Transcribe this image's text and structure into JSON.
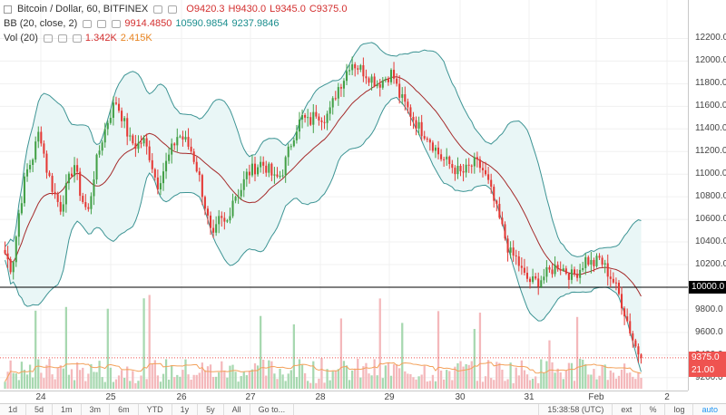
{
  "legend": {
    "title": "Bitcoin / Dollar, 60, BITFINEX",
    "open": "O9420.3",
    "high": "H9430.0",
    "low": "L9345.0",
    "close": "C9375.0",
    "bb_label": "BB (20, close, 2)",
    "bb_mid": "9914.4850",
    "bb_upper": "10590.9854",
    "bb_lower": "9237.9846",
    "vol_label": "Vol (20)",
    "vol_value": "1.342K",
    "vol_ma": "2.415K"
  },
  "colors": {
    "up": "#43a047",
    "down": "#e53935",
    "basis": "#a52a2a",
    "band": "#3d9494",
    "band_fill": "#e9f6f6",
    "vol_up": "#a7d8b0",
    "vol_down": "#f4b8bb",
    "vol_ma": "#f3a15a",
    "axis_bg_dark": "#000000",
    "price_tag": "#ef5350",
    "vol_tag": "#ef5350"
  },
  "y_axis": {
    "ticks": [
      "12200.0",
      "12000.0",
      "11800.0",
      "11600.0",
      "11400.0",
      "11200.0",
      "11000.0",
      "10800.0",
      "10600.0",
      "10400.0",
      "10200.0",
      "9800.0",
      "9600.0",
      "9400.0",
      "9200.0"
    ],
    "level_label": "10000.0",
    "price_label": "9375.0",
    "vol_label": "21.00"
  },
  "x_axis": {
    "ticks": [
      "24",
      "25",
      "26",
      "27",
      "28",
      "29",
      "30",
      "31",
      "Feb",
      "2"
    ]
  },
  "toolbar": {
    "ranges": [
      "1d",
      "5d",
      "1m",
      "3m",
      "6m",
      "YTD",
      "1y",
      "5y",
      "All",
      "Go to..."
    ],
    "time": "15:38:58 (UTC)",
    "ext": "ext",
    "percent": "%",
    "log": "log",
    "auto": "auto"
  },
  "chart_data": {
    "type": "candlestick",
    "symbol": "Bitcoin / Dollar",
    "interval": "60",
    "exchange": "BITFINEX",
    "ylim": [
      9150,
      12300
    ],
    "horizontal_line": 10000,
    "current_price": 9375,
    "x_labels": [
      "24",
      "25",
      "26",
      "27",
      "28",
      "29",
      "30",
      "31",
      "Feb",
      "2"
    ],
    "close_path": [
      10300,
      10150,
      10650,
      11000,
      11150,
      11400,
      11050,
      10850,
      10700,
      10900,
      11100,
      10800,
      10650,
      11050,
      11300,
      11500,
      11650,
      11500,
      11300,
      11250,
      11300,
      11150,
      10900,
      11050,
      11200,
      11350,
      11300,
      11200,
      11000,
      10700,
      10400,
      10600,
      10550,
      10800,
      10850,
      11000,
      11050,
      11100,
      11050,
      10950,
      11000,
      11200,
      11400,
      11500,
      11450,
      11550,
      11500,
      11550,
      11750,
      11850,
      12000,
      11950,
      11900,
      11850,
      11800,
      11850,
      11900,
      11700,
      11600,
      11500,
      11400,
      11350,
      11250,
      11150,
      11100,
      11050,
      11000,
      11050,
      11100,
      11050,
      10900,
      10700,
      10500,
      10300,
      10250,
      10100,
      10050,
      10050,
      10100,
      10150,
      10200,
      10150,
      10100,
      10150,
      10250,
      10200,
      10250,
      10150,
      10050,
      9900,
      9700,
      9500,
      9375
    ],
    "bb_upper_end": 10590.9854,
    "bb_mid_end": 9914.485,
    "bb_lower_end": 9237.9846,
    "volume_ma_last": 2415,
    "volume_last": 1342
  }
}
